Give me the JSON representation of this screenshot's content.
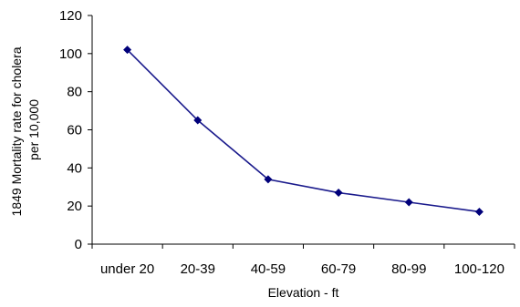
{
  "chart_data": {
    "type": "line",
    "title": "",
    "xlabel": "Elevation - ft",
    "ylabel_lines": [
      "1849 Mortality rate for cholera",
      "per 10,000"
    ],
    "categories": [
      "under 20",
      "20-39",
      "40-59",
      "60-79",
      "80-99",
      "100-120"
    ],
    "series": [
      {
        "values": [
          102,
          65,
          34,
          27,
          22,
          17
        ]
      }
    ],
    "ylim": [
      0,
      120
    ],
    "yticks": [
      0,
      20,
      40,
      60,
      80,
      100,
      120
    ],
    "grid": false,
    "legend": "none",
    "colors": {
      "line": "#1a1a8c",
      "marker": "#00007a",
      "axis": "#000000"
    }
  }
}
